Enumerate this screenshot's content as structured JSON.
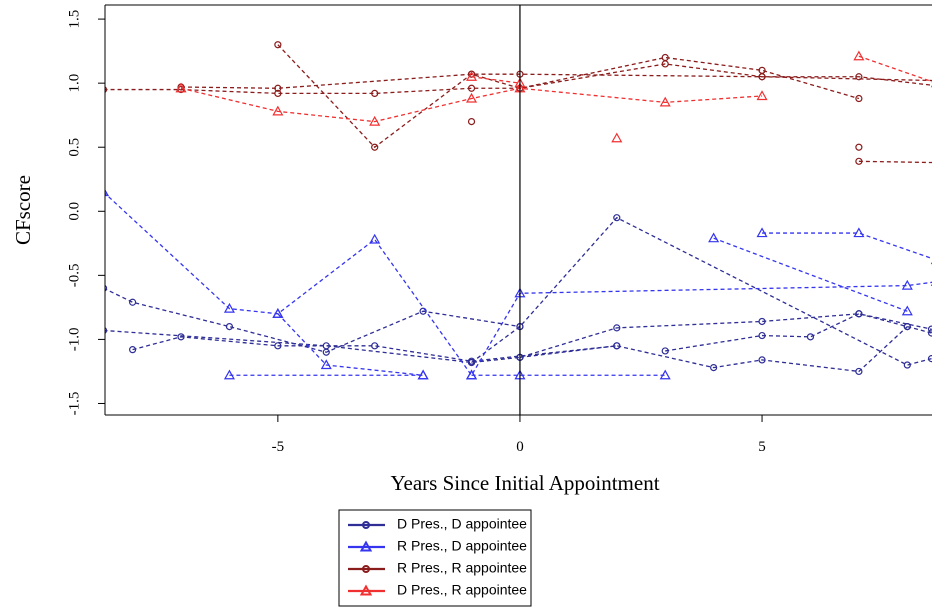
{
  "chart_data": {
    "type": "line",
    "x_label": "Years Since Initial Appointment",
    "y_label": "CFscore",
    "xlim": [
      -8.57,
      8.51
    ],
    "ylim": [
      -1.59,
      1.61
    ],
    "xticks": [
      -5,
      0,
      5
    ],
    "yticks": [
      1.5,
      {
        "value": 1,
        "label": "1.0"
      },
      0.5,
      {
        "value": 0,
        "label": "0.0"
      },
      -0.5,
      {
        "value": -1,
        "label": "-1.0"
      },
      -1.5
    ],
    "vline": 0,
    "groups": [
      {
        "name": "D Pres., D appointee",
        "color": "#2e2e96",
        "marker": "circle",
        "lines": [
          {
            "x": [
              -8.6,
              -8,
              -6,
              -4,
              -2,
              0
            ],
            "y": [
              -0.6,
              -0.71,
              -0.9,
              -1.1,
              -0.78,
              -0.9
            ]
          },
          {
            "x": [
              -8,
              -7,
              -5,
              -3,
              -1,
              2
            ],
            "y": [
              -1.08,
              -0.98,
              -1.05,
              -1.05,
              -1.17,
              -1.05
            ]
          },
          {
            "x": [
              -1,
              0,
              2,
              8,
              8.5
            ],
            "y": [
              -1.18,
              -0.9,
              -0.05,
              -1.2,
              -1.15
            ]
          },
          {
            "x": [
              0,
              2,
              4,
              5,
              7,
              8
            ],
            "y": [
              -1.14,
              -1.05,
              -1.22,
              -1.16,
              -1.25,
              -0.9
            ]
          },
          {
            "x": [
              -8.6,
              -4,
              -1,
              0,
              2,
              5,
              7,
              8,
              8.5
            ],
            "y": [
              -0.93,
              -1.05,
              -1.18,
              -1.14,
              -0.91,
              -0.86,
              -0.8,
              -0.9,
              -0.95
            ]
          },
          {
            "x": [
              3,
              5,
              6,
              7,
              8.5
            ],
            "y": [
              -1.09,
              -0.97,
              -0.98,
              -0.8,
              -0.92
            ]
          }
        ]
      },
      {
        "name": "R Pres., D appointee",
        "color": "#3535f0",
        "marker": "triangle",
        "lines": [
          {
            "x": [
              -8.6,
              -6,
              -5,
              -3,
              -1,
              0,
              8,
              8.6
            ],
            "y": [
              0.15,
              -0.76,
              -0.8,
              -0.22,
              -1.28,
              -0.64,
              -0.58,
              -0.55
            ]
          },
          {
            "x": [
              -6,
              -2
            ],
            "y": [
              -1.28,
              -1.28
            ]
          },
          {
            "x": [
              -1,
              0,
              3
            ],
            "y": [
              -1.28,
              -1.28,
              -1.28
            ]
          },
          {
            "x": [
              -5,
              -4,
              -2
            ],
            "y": [
              -0.8,
              -1.2,
              -1.28
            ]
          },
          {
            "x": [
              4,
              8
            ],
            "y": [
              -0.21,
              -0.78
            ]
          },
          {
            "x": [
              5,
              7,
              8.6
            ],
            "y": [
              -0.17,
              -0.17,
              -0.38
            ]
          }
        ]
      },
      {
        "name": "R Pres., R appointee",
        "color": "#8b1c1c",
        "marker": "circle",
        "lines": [
          {
            "x": [
              -8.6,
              -7,
              -5,
              -3,
              -1,
              0,
              3,
              5,
              7,
              8.6
            ],
            "y": [
              0.95,
              0.95,
              0.92,
              0.92,
              0.96,
              0.96,
              1.15,
              1.05,
              1.05,
              0.98
            ]
          },
          {
            "x": [
              -5,
              -3,
              -1,
              0,
              3,
              5,
              7
            ],
            "y": [
              1.3,
              0.5,
              1.07,
              0.96,
              1.2,
              1.1,
              0.88
            ]
          },
          {
            "x": [
              -7,
              -5,
              -1,
              0,
              5,
              8.6
            ],
            "y": [
              0.97,
              0.96,
              1.07,
              1.07,
              1.05,
              1.02
            ]
          },
          {
            "x": [
              -1
            ],
            "y": [
              0.7
            ]
          },
          {
            "x": [
              7
            ],
            "y": [
              0.5
            ]
          },
          {
            "x": [
              7,
              8.6
            ],
            "y": [
              0.39,
              0.38
            ]
          }
        ]
      },
      {
        "name": "D Pres., R appointee",
        "color": "#f03030",
        "marker": "triangle",
        "lines": [
          {
            "x": [
              -7,
              -5,
              -3,
              -1,
              0,
              3,
              5
            ],
            "y": [
              0.96,
              0.78,
              0.7,
              0.88,
              0.96,
              0.85,
              0.9
            ]
          },
          {
            "x": [
              -1,
              0
            ],
            "y": [
              1.05,
              1.0
            ]
          },
          {
            "x": [
              7,
              8.6
            ],
            "y": [
              1.21,
              1.0
            ]
          },
          {
            "x": [
              2
            ],
            "y": [
              0.57
            ]
          }
        ]
      }
    ]
  }
}
